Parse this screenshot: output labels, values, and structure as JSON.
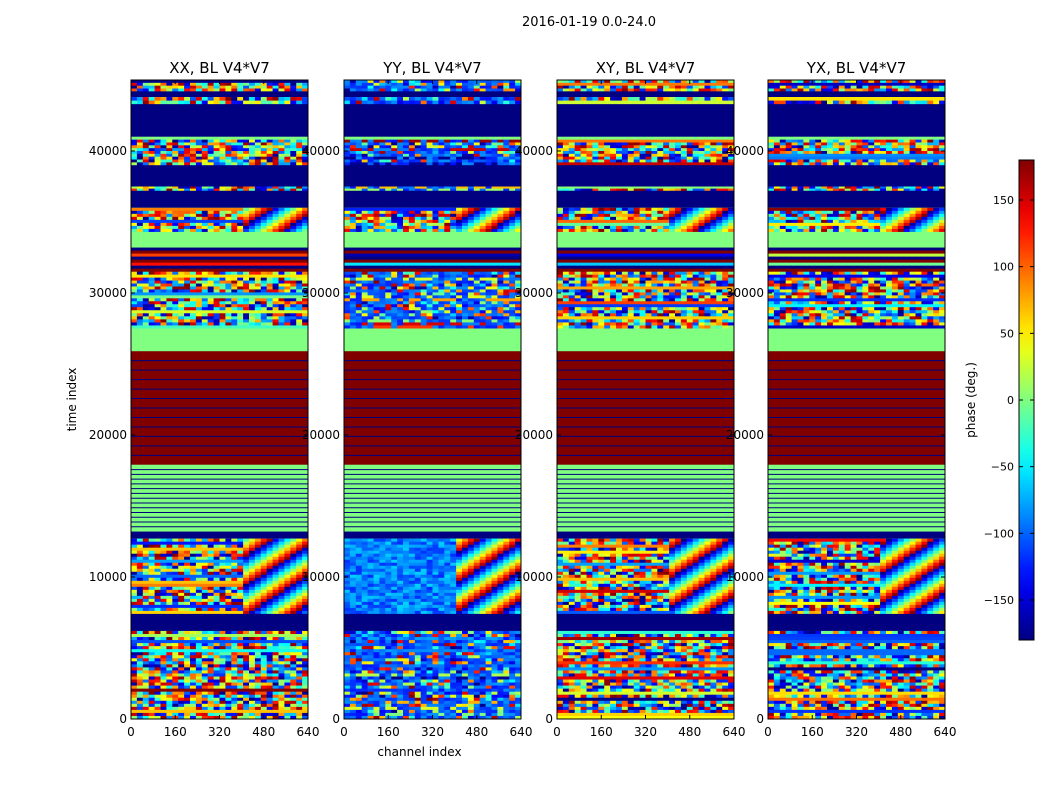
{
  "figure": {
    "suptitle": "2016-01-19 0.0-24.0"
  },
  "colorbar": {
    "label": "phase (deg.)",
    "ticks": [
      150,
      100,
      50,
      0,
      -50,
      -100,
      -150
    ],
    "tick_labels": [
      "150",
      "100",
      "50",
      "0",
      "−50",
      "−100",
      "−150"
    ],
    "range": [
      -180,
      180
    ],
    "colormap": "jet"
  },
  "colors": {
    "min": "#00007f",
    "mid": "#7fff7f",
    "max": "#7f0000",
    "frame": "#000000"
  },
  "chart_data": [
    {
      "type": "heatmap",
      "title": "XX, BL V4*V7",
      "xlabel": "",
      "ylabel": "time index",
      "xlim": [
        0,
        640
      ],
      "ylim": [
        0,
        45000
      ],
      "x_ticks": [
        0,
        160,
        320,
        480,
        640
      ],
      "x_tick_labels": [
        "0",
        "160",
        "320",
        "480",
        "640"
      ],
      "y_ticks": [
        0,
        10000,
        20000,
        30000,
        40000
      ],
      "y_tick_labels": [
        "0",
        "10000",
        "20000",
        "30000",
        "40000"
      ],
      "pattern": "xx"
    },
    {
      "type": "heatmap",
      "title": "YY, BL V4*V7",
      "xlabel": "channel index",
      "ylabel": "",
      "xlim": [
        0,
        640
      ],
      "ylim": [
        0,
        45000
      ],
      "x_ticks": [
        0,
        160,
        320,
        480,
        640
      ],
      "x_tick_labels": [
        "0",
        "160",
        "320",
        "480",
        "640"
      ],
      "y_ticks": [
        0,
        10000,
        20000,
        30000,
        40000
      ],
      "y_tick_labels": [
        "0",
        "10000",
        "20000",
        "30000",
        "40000"
      ],
      "pattern": "yy"
    },
    {
      "type": "heatmap",
      "title": "XY, BL V4*V7",
      "xlabel": "",
      "ylabel": "",
      "xlim": [
        0,
        640
      ],
      "ylim": [
        0,
        45000
      ],
      "x_ticks": [
        0,
        160,
        320,
        480,
        640
      ],
      "x_tick_labels": [
        "0",
        "160",
        "320",
        "480",
        "640"
      ],
      "y_ticks": [
        0,
        10000,
        20000,
        30000,
        40000
      ],
      "y_tick_labels": [
        "0",
        "10000",
        "20000",
        "30000",
        "40000"
      ],
      "pattern": "xy"
    },
    {
      "type": "heatmap",
      "title": "YX, BL V4*V7",
      "xlabel": "",
      "ylabel": "",
      "xlim": [
        0,
        640
      ],
      "ylim": [
        0,
        45000
      ],
      "x_ticks": [
        0,
        160,
        320,
        480,
        640
      ],
      "x_tick_labels": [
        "0",
        "160",
        "320",
        "480",
        "640"
      ],
      "y_ticks": [
        0,
        10000,
        20000,
        30000,
        40000
      ],
      "y_tick_labels": [
        "0",
        "10000",
        "20000",
        "30000",
        "40000"
      ],
      "pattern": "yx"
    }
  ],
  "bands": [
    {
      "y0": 44200,
      "y1": 45000,
      "kind": "noise"
    },
    {
      "y0": 43800,
      "y1": 44200,
      "kind": "solid",
      "phase": -180
    },
    {
      "y0": 43300,
      "y1": 43800,
      "kind": "noise"
    },
    {
      "y0": 41000,
      "y1": 43300,
      "kind": "solid",
      "phase": -180
    },
    {
      "y0": 40800,
      "y1": 41000,
      "kind": "solid",
      "phase": 0
    },
    {
      "y0": 39000,
      "y1": 40800,
      "kind": "noise"
    },
    {
      "y0": 37500,
      "y1": 39000,
      "kind": "solid",
      "phase": -180
    },
    {
      "y0": 37200,
      "y1": 37500,
      "kind": "noise"
    },
    {
      "y0": 36000,
      "y1": 37200,
      "kind": "solid",
      "phase": -180
    },
    {
      "y0": 34300,
      "y1": 36000,
      "kind": "fringe"
    },
    {
      "y0": 33200,
      "y1": 34300,
      "kind": "solid",
      "phase": 0
    },
    {
      "y0": 31500,
      "y1": 33200,
      "kind": "stripes"
    },
    {
      "y0": 29000,
      "y1": 31500,
      "kind": "noise"
    },
    {
      "y0": 27500,
      "y1": 29000,
      "kind": "noise"
    },
    {
      "y0": 25900,
      "y1": 27500,
      "kind": "solid",
      "phase": 0
    },
    {
      "y0": 17900,
      "y1": 25900,
      "kind": "solid",
      "phase": 180
    },
    {
      "y0": 13200,
      "y1": 17900,
      "kind": "solid",
      "phase": 0
    },
    {
      "y0": 12700,
      "y1": 13200,
      "kind": "solid",
      "phase": -180
    },
    {
      "y0": 7400,
      "y1": 12700,
      "kind": "fringe2"
    },
    {
      "y0": 6200,
      "y1": 7400,
      "kind": "solid",
      "phase": -180
    },
    {
      "y0": 0,
      "y1": 6200,
      "kind": "noise"
    }
  ]
}
